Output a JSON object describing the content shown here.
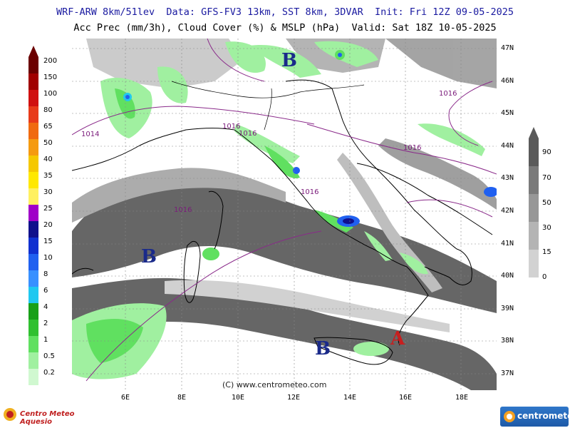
{
  "header": {
    "line1": "WRF-ARW 8km/51lev  Data: GFS-FV3 13km, SST 8km, 3DVAR  Init: Fri 12Z 09-05-2025",
    "line2": "Acc Prec (mm/3h), Cloud Cover (%) & MSLP (hPa)  Valid: Sat 18Z 10-05-2025"
  },
  "latitude_labels": [
    "47N",
    "46N",
    "45N",
    "44N",
    "43N",
    "42N",
    "41N",
    "40N",
    "39N",
    "38N",
    "37N"
  ],
  "longitude_labels": [
    "6E",
    "8E",
    "10E",
    "12E",
    "14E",
    "16E",
    "18E"
  ],
  "precip_legend": {
    "levels": [
      "200",
      "150",
      "100",
      "80",
      "65",
      "50",
      "40",
      "35",
      "30",
      "25",
      "20",
      "15",
      "10",
      "8",
      "6",
      "4",
      "2",
      "1",
      "0.5",
      "0.2"
    ],
    "colors": [
      "#6b0000",
      "#a00000",
      "#d01010",
      "#e83a1a",
      "#f06a10",
      "#f59a10",
      "#f5c800",
      "#ffe800",
      "#fff060",
      "#a000c8",
      "#10108c",
      "#1030d0",
      "#2060f0",
      "#3890ff",
      "#20c8f0",
      "#18a018",
      "#30c030",
      "#60e060",
      "#a0f0a0",
      "#d0f8d0"
    ]
  },
  "cloud_legend": {
    "levels": [
      "90",
      "70",
      "50",
      "30",
      "15",
      "0"
    ],
    "colors": [
      "#5a5a5a",
      "#7a7a7a",
      "#979797",
      "#b4b4b4",
      "#d2d2d2",
      "#efefef"
    ]
  },
  "pressure_centers": [
    {
      "label": "B",
      "color": "#1a2a8a"
    },
    {
      "label": "B",
      "color": "#1a2a8a"
    },
    {
      "label": "B",
      "color": "#1a2a8a"
    },
    {
      "label": "A",
      "color": "#c81e1e"
    }
  ],
  "isobar_labels": [
    "1016",
    "1014",
    "1016",
    "1016",
    "1016",
    "1016",
    "1016"
  ],
  "copyright": "(C) www.centrometeo.com",
  "logos": {
    "left": "Centro Meteo Aquesio",
    "right": "centrometeo"
  }
}
